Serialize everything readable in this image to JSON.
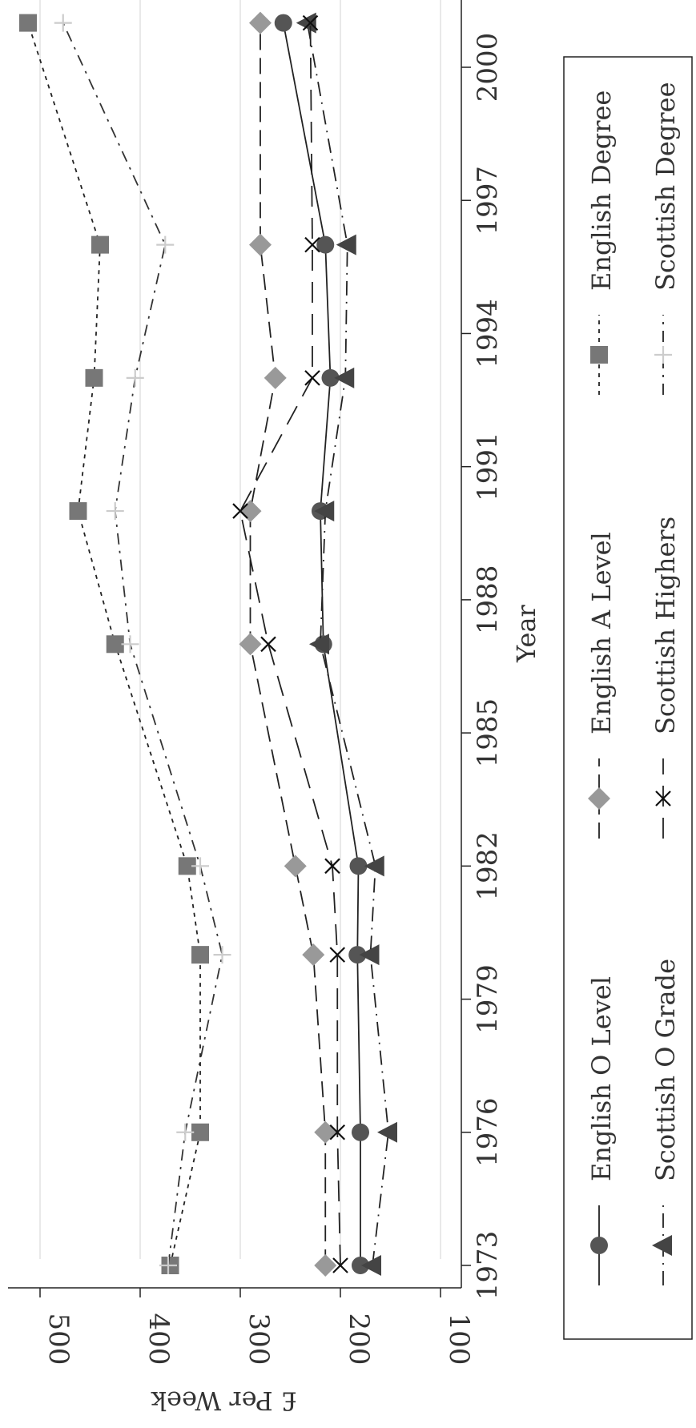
{
  "chart_data": {
    "type": "line",
    "orientation": "rotated-90-clockwise",
    "xlabel": "Year",
    "ylabel": "£ Per Week",
    "x": [
      1973,
      1976,
      1980,
      1982,
      1987,
      1990,
      1993,
      1996,
      2001
    ],
    "xticks": [
      "1973",
      "1976",
      "1979",
      "1982",
      "1985",
      "1988",
      "1991",
      "1994",
      "1997",
      "2000"
    ],
    "yticks": [
      "100",
      "200",
      "300",
      "400",
      "500"
    ],
    "ylim": [
      80,
      510
    ],
    "xlim": [
      1972.3,
      2001.5
    ],
    "grid": true,
    "legend_position": "bottom",
    "series": [
      {
        "name": "English O Level",
        "values": [
          180,
          180,
          183,
          182,
          217,
          220,
          210,
          215,
          257
        ],
        "color": "#555555",
        "marker": "circle",
        "dash": "solid"
      },
      {
        "name": "English A Level",
        "values": [
          215,
          215,
          227,
          245,
          290,
          290,
          265,
          280,
          280
        ],
        "color": "#999999",
        "marker": "diamond",
        "dash": "long"
      },
      {
        "name": "English Degree",
        "values": [
          370,
          340,
          340,
          353,
          425,
          462,
          446,
          440,
          512
        ],
        "color": "#777777",
        "marker": "square",
        "dash": "dot"
      },
      {
        "name": "Scottish O Grade",
        "values": [
          168,
          152,
          170,
          165,
          220,
          215,
          195,
          193,
          233
        ],
        "color": "#444444",
        "marker": "triangle",
        "dash": "longdot"
      },
      {
        "name": "Scottish Highers",
        "values": [
          200,
          203,
          203,
          208,
          272,
          300,
          228,
          228,
          230
        ],
        "color": "#111111",
        "marker": "x",
        "dash": "longgap"
      },
      {
        "name": "Scottish Degree",
        "values": [
          372,
          355,
          318,
          340,
          410,
          425,
          405,
          375,
          477
        ],
        "color": "#cccccc",
        "marker": "plus",
        "dash": "dashdot"
      }
    ]
  }
}
